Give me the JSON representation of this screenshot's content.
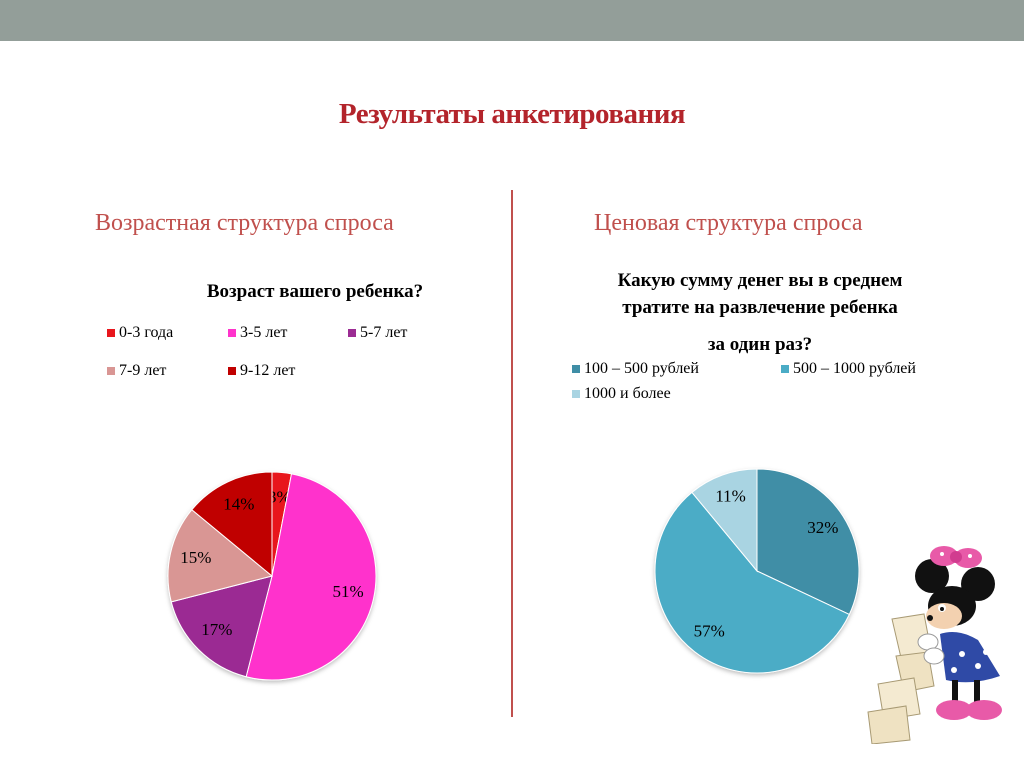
{
  "slide": {
    "title": "Результаты анкетирования"
  },
  "left": {
    "heading": "Возрастная структура спроса",
    "chart_title": "Возраст вашего ребенка?"
  },
  "right": {
    "heading": "Ценовая структура спроса",
    "chart_title_lines": [
      "Какую сумму денег вы в среднем",
      "тратите на развлечение ребенка",
      "за один раз?"
    ]
  },
  "chart_data": [
    {
      "type": "pie",
      "title": "Возраст вашего ребенка?",
      "legend_position": "top",
      "categories": [
        "0-3 года",
        "3-5 лет",
        "5-7 лет",
        "7-9 лет",
        "9-12 лет"
      ],
      "values": [
        3,
        51,
        17,
        15,
        14
      ],
      "labels": [
        "3%",
        "51%",
        "17%",
        "15%",
        "14%"
      ],
      "colors": [
        "#e8161c",
        "#ff33cc",
        "#9b2c93",
        "#d99694",
        "#c00000"
      ]
    },
    {
      "type": "pie",
      "title": "Какую сумму денег вы в среднем тратите на развлечение ребенка за один раз?",
      "legend_position": "top",
      "categories": [
        "100 – 500 рублей",
        "500 – 1000 рублей",
        "1000 и более"
      ],
      "values": [
        32,
        57,
        11
      ],
      "labels": [
        "32%",
        "57%",
        "11%"
      ],
      "colors": [
        "#3f8ea6",
        "#4bacc6",
        "#a9d4e2"
      ]
    }
  ]
}
